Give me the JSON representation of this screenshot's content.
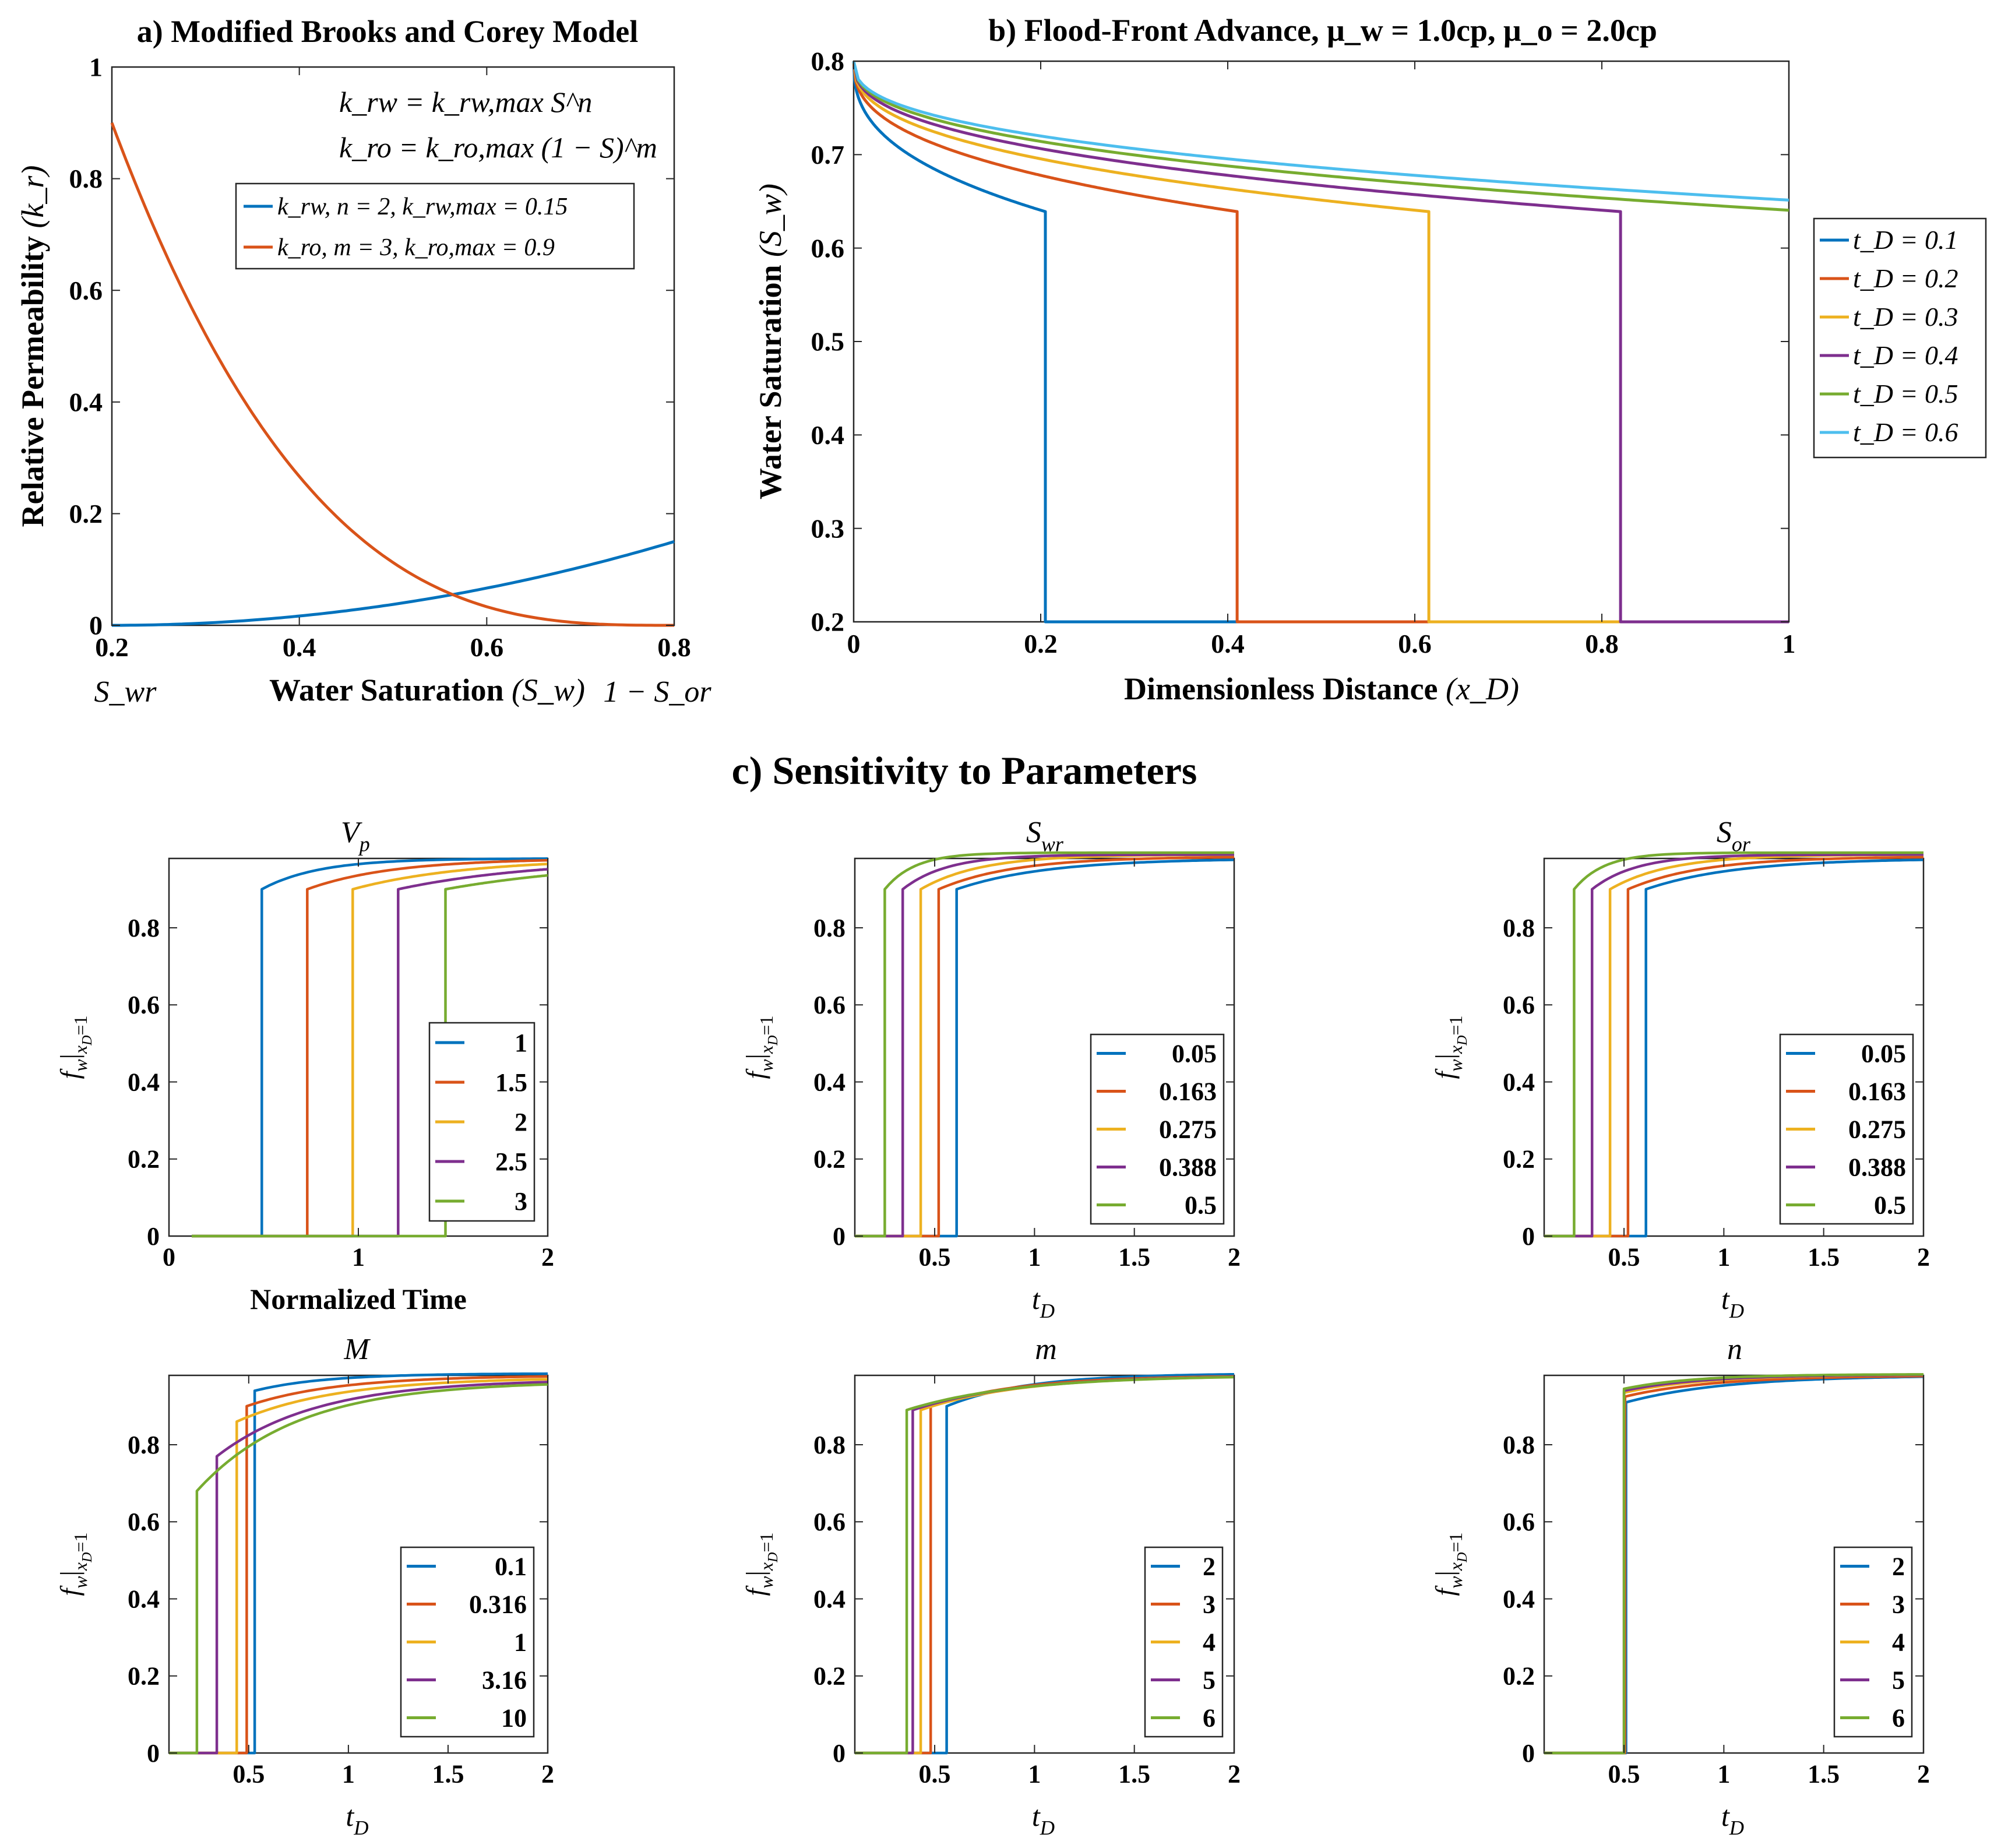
{
  "colors": {
    "blue": "#0072BD",
    "orange": "#D95319",
    "yellow": "#EDB120",
    "purple": "#7E2F8E",
    "green": "#77AC30",
    "cyan": "#4DBEEE"
  },
  "section_c_title": "c) Sensitivity to Parameters",
  "chart_data": [
    {
      "id": "a",
      "type": "line",
      "title": "a) Modified Brooks and Corey Model",
      "xlabel": "Water Saturation",
      "xlabel_math": "(S_w)",
      "xlabel_left": "S_wr",
      "xlabel_right": "1 − S_or",
      "ylabel": "Relative Permeability",
      "ylabel_math": "(k_r)",
      "xlim": [
        0.2,
        0.8
      ],
      "ylim": [
        0,
        1
      ],
      "xticks": [
        "0.2",
        "0.4",
        "0.6",
        "0.8"
      ],
      "yticks": [
        "0",
        "0.2",
        "0.4",
        "0.6",
        "0.8",
        "1"
      ],
      "equations": [
        "k_rw = k_rw,max S^n",
        "k_ro = k_ro,max (1 − S)^m"
      ],
      "legend": [
        "k_rw, n = 2, k_rw,max = 0.15",
        "k_ro, m = 3, k_ro,max = 0.9"
      ],
      "series": [
        {
          "name": "k_rw",
          "color": "blue",
          "model": "krw",
          "n": 2,
          "kmax": 0.15
        },
        {
          "name": "k_ro",
          "color": "orange",
          "model": "kro",
          "m": 3,
          "kmax": 0.9
        }
      ]
    },
    {
      "id": "b",
      "type": "line",
      "title": "b) Flood-Front Advance, μ_w = 1.0cp, μ_o = 2.0cp",
      "xlabel": "Dimensionless Distance",
      "xlabel_math": "(x_D)",
      "ylabel": "Water Saturation",
      "ylabel_math": "(S_w)",
      "xlim": [
        0,
        1
      ],
      "ylim": [
        0.2,
        0.8
      ],
      "xticks": [
        "0",
        "0.2",
        "0.4",
        "0.6",
        "0.8",
        "1"
      ],
      "yticks": [
        "0.2",
        "0.3",
        "0.4",
        "0.5",
        "0.6",
        "0.7",
        "0.8"
      ],
      "legend_title_var": "t_D",
      "series": [
        {
          "name": "t_D = 0.1",
          "t": 0.1,
          "color": "blue"
        },
        {
          "name": "t_D = 0.2",
          "t": 0.2,
          "color": "orange"
        },
        {
          "name": "t_D = 0.3",
          "t": 0.3,
          "color": "yellow"
        },
        {
          "name": "t_D = 0.4",
          "t": 0.4,
          "color": "purple"
        },
        {
          "name": "t_D = 0.5",
          "t": 0.5,
          "color": "green"
        },
        {
          "name": "t_D = 0.6",
          "t": 0.6,
          "color": "cyan"
        }
      ],
      "shock_saturation": 0.639,
      "front_speed": 2.05,
      "initial_saturation": 0.2,
      "max_saturation": 0.8
    },
    {
      "id": "vp",
      "type": "line",
      "title": "V_p",
      "xlabel": "Normalized Time",
      "ylabel": "f_w|x_D=1",
      "xlim": [
        0,
        2
      ],
      "ylim": [
        0,
        0.98
      ],
      "xticks": [
        "0",
        "1",
        "2"
      ],
      "xtick_values": [
        0,
        1,
        2
      ],
      "yticks": [
        "0",
        "0.2",
        "0.4",
        "0.6",
        "0.8"
      ],
      "series": [
        {
          "name": "1",
          "color": "blue",
          "bt": 0.49,
          "fmin": 0.9,
          "fmax": 0.98,
          "tau": 0.3
        },
        {
          "name": "1.5",
          "color": "orange",
          "bt": 0.73,
          "fmin": 0.9,
          "fmax": 0.98,
          "tau": 0.45
        },
        {
          "name": "2",
          "color": "yellow",
          "bt": 0.97,
          "fmin": 0.9,
          "fmax": 0.98,
          "tau": 0.6
        },
        {
          "name": "2.5",
          "color": "purple",
          "bt": 1.21,
          "fmin": 0.9,
          "fmax": 0.98,
          "tau": 0.75
        },
        {
          "name": "3",
          "color": "green",
          "bt": 1.46,
          "fmin": 0.9,
          "fmax": 0.98,
          "tau": 0.9
        }
      ],
      "t_start": 0.12
    },
    {
      "id": "swr",
      "type": "line",
      "title": "S_wr",
      "xlabel": "t_D",
      "ylabel": "f_w|x_D=1",
      "xlim": [
        0.1,
        2
      ],
      "ylim": [
        0,
        0.98
      ],
      "xticks": [
        "0.5",
        "1",
        "1.5",
        "2"
      ],
      "xtick_values": [
        0.5,
        1,
        1.5,
        2
      ],
      "yticks": [
        "0",
        "0.2",
        "0.4",
        "0.6",
        "0.8"
      ],
      "series": [
        {
          "name": "0.05",
          "color": "blue",
          "bt": 0.61,
          "fmin": 0.9,
          "fmax": 0.98,
          "tau": 0.45
        },
        {
          "name": "0.163",
          "color": "orange",
          "bt": 0.52,
          "fmin": 0.9,
          "fmax": 0.985,
          "tau": 0.38
        },
        {
          "name": "0.275",
          "color": "yellow",
          "bt": 0.43,
          "fmin": 0.9,
          "fmax": 0.99,
          "tau": 0.3
        },
        {
          "name": "0.388",
          "color": "purple",
          "bt": 0.34,
          "fmin": 0.9,
          "fmax": 0.99,
          "tau": 0.22
        },
        {
          "name": "0.5",
          "color": "green",
          "bt": 0.25,
          "fmin": 0.9,
          "fmax": 0.995,
          "tau": 0.15
        }
      ],
      "t_start": 0.1
    },
    {
      "id": "sor",
      "type": "line",
      "title": "S_or",
      "xlabel": "t_D",
      "ylabel": "f_w|x_D=1",
      "xlim": [
        0.1,
        2
      ],
      "ylim": [
        0,
        0.98
      ],
      "xticks": [
        "0.5",
        "1",
        "1.5",
        "2"
      ],
      "xtick_values": [
        0.5,
        1,
        1.5,
        2
      ],
      "yticks": [
        "0",
        "0.2",
        "0.4",
        "0.6",
        "0.8"
      ],
      "series": [
        {
          "name": "0.05",
          "color": "blue",
          "bt": 0.61,
          "fmin": 0.9,
          "fmax": 0.98,
          "tau": 0.45
        },
        {
          "name": "0.163",
          "color": "orange",
          "bt": 0.52,
          "fmin": 0.9,
          "fmax": 0.985,
          "tau": 0.38
        },
        {
          "name": "0.275",
          "color": "yellow",
          "bt": 0.43,
          "fmin": 0.9,
          "fmax": 0.99,
          "tau": 0.3
        },
        {
          "name": "0.388",
          "color": "purple",
          "bt": 0.34,
          "fmin": 0.9,
          "fmax": 0.99,
          "tau": 0.22
        },
        {
          "name": "0.5",
          "color": "green",
          "bt": 0.25,
          "fmin": 0.9,
          "fmax": 0.995,
          "tau": 0.15
        }
      ],
      "t_start": 0.1
    },
    {
      "id": "M",
      "type": "line",
      "title": "M",
      "xlabel": "t_D",
      "ylabel": "f_w|x_D=1",
      "xlim": [
        0.1,
        2
      ],
      "ylim": [
        0,
        0.98
      ],
      "xticks": [
        "0.5",
        "1",
        "1.5",
        "2"
      ],
      "xtick_values": [
        0.5,
        1,
        1.5,
        2
      ],
      "yticks": [
        "0",
        "0.2",
        "0.4",
        "0.6",
        "0.8"
      ],
      "series": [
        {
          "name": "0.1",
          "color": "blue",
          "bt": 0.53,
          "fmin": 0.94,
          "fmax": 0.985,
          "tau": 0.35
        },
        {
          "name": "0.316",
          "color": "orange",
          "bt": 0.49,
          "fmin": 0.9,
          "fmax": 0.98,
          "tau": 0.45
        },
        {
          "name": "1",
          "color": "yellow",
          "bt": 0.44,
          "fmin": 0.86,
          "fmax": 0.975,
          "tau": 0.5
        },
        {
          "name": "3.16",
          "color": "purple",
          "bt": 0.34,
          "fmin": 0.77,
          "fmax": 0.97,
          "tau": 0.5
        },
        {
          "name": "10",
          "color": "green",
          "bt": 0.24,
          "fmin": 0.68,
          "fmax": 0.965,
          "tau": 0.5
        }
      ],
      "t_start": 0.1
    },
    {
      "id": "m",
      "type": "line",
      "title": "m",
      "xlabel": "t_D",
      "ylabel": "f_w|x_D=1",
      "xlim": [
        0.1,
        2
      ],
      "ylim": [
        0,
        0.98
      ],
      "xticks": [
        "0.5",
        "1",
        "1.5",
        "2"
      ],
      "xtick_values": [
        0.5,
        1,
        1.5,
        2
      ],
      "yticks": [
        "0",
        "0.2",
        "0.4",
        "0.6",
        "0.8"
      ],
      "series": [
        {
          "name": "2",
          "color": "blue",
          "bt": 0.56,
          "fmin": 0.9,
          "fmax": 0.985,
          "tau": 0.4
        },
        {
          "name": "3",
          "color": "orange",
          "bt": 0.48,
          "fmin": 0.9,
          "fmax": 0.98,
          "tau": 0.45
        },
        {
          "name": "4",
          "color": "yellow",
          "bt": 0.43,
          "fmin": 0.89,
          "fmax": 0.98,
          "tau": 0.5
        },
        {
          "name": "5",
          "color": "purple",
          "bt": 0.39,
          "fmin": 0.89,
          "fmax": 0.98,
          "tau": 0.52
        },
        {
          "name": "6",
          "color": "green",
          "bt": 0.36,
          "fmin": 0.89,
          "fmax": 0.98,
          "tau": 0.55
        }
      ],
      "t_start": 0.1
    },
    {
      "id": "n",
      "type": "line",
      "title": "n",
      "xlabel": "t_D",
      "ylabel": "f_w|x_D=1",
      "xlim": [
        0.1,
        2
      ],
      "ylim": [
        0,
        0.98
      ],
      "xticks": [
        "0.5",
        "1",
        "1.5",
        "2"
      ],
      "xtick_values": [
        0.5,
        1,
        1.5,
        2
      ],
      "yticks": [
        "0",
        "0.2",
        "0.4",
        "0.6",
        "0.8"
      ],
      "series": [
        {
          "name": "2",
          "color": "blue",
          "bt": 0.51,
          "fmin": 0.91,
          "fmax": 0.98,
          "tau": 0.5
        },
        {
          "name": "3",
          "color": "orange",
          "bt": 0.505,
          "fmin": 0.925,
          "fmax": 0.98,
          "tau": 0.45
        },
        {
          "name": "4",
          "color": "yellow",
          "bt": 0.5,
          "fmin": 0.935,
          "fmax": 0.982,
          "tau": 0.4
        },
        {
          "name": "5",
          "color": "purple",
          "bt": 0.5,
          "fmin": 0.94,
          "fmax": 0.982,
          "tau": 0.38
        },
        {
          "name": "6",
          "color": "green",
          "bt": 0.5,
          "fmin": 0.945,
          "fmax": 0.983,
          "tau": 0.35
        }
      ],
      "t_start": 0.1
    }
  ]
}
